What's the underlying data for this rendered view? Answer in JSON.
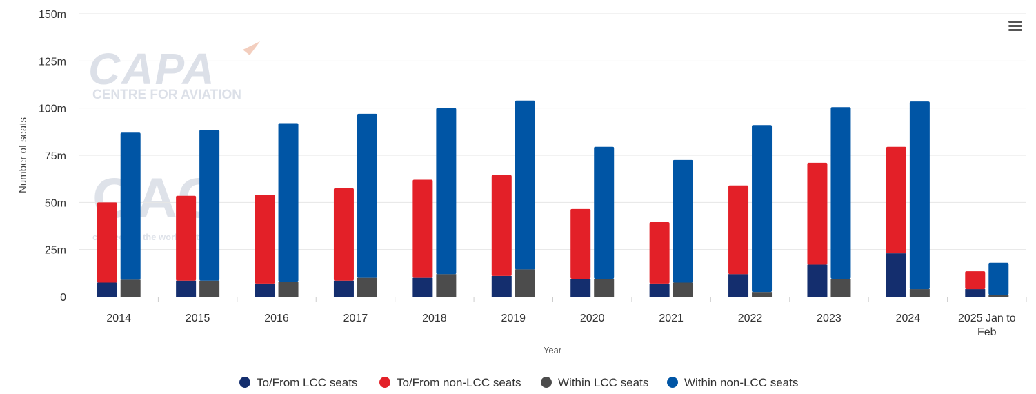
{
  "watermark": {
    "capa_logo": "CAPA",
    "capa_tagline": "CENTRE FOR AVIATION",
    "oag_logo": "OAG",
    "oag_tagline": "connecting the world of travel"
  },
  "menu_icon": "hamburger-menu-icon",
  "chart_data": {
    "type": "bar",
    "xlabel": "Year",
    "ylabel": "Number of seats",
    "ylim": [
      0,
      150
    ],
    "yticks": [
      0,
      25,
      50,
      75,
      100,
      125,
      150
    ],
    "ytick_labels": [
      "0",
      "25m",
      "50m",
      "75m",
      "100m",
      "125m",
      "150m"
    ],
    "grid": true,
    "legend_position": "bottom",
    "categories": [
      "2014",
      "2015",
      "2016",
      "2017",
      "2018",
      "2019",
      "2020",
      "2021",
      "2022",
      "2023",
      "2024",
      "2025 Jan to Feb"
    ],
    "stacks": [
      {
        "stack": "to-from",
        "series": [
          "To/From LCC seats",
          "To/From non-LCC seats"
        ]
      },
      {
        "stack": "within",
        "series": [
          "Within LCC seats",
          "Within non-LCC seats"
        ]
      }
    ],
    "series": [
      {
        "name": "To/From LCC seats",
        "color": "#142e6e",
        "stack": "to-from",
        "values": [
          7.5,
          8.5,
          7,
          8.5,
          10,
          11,
          9.5,
          7,
          12,
          17,
          23,
          4
        ]
      },
      {
        "name": "To/From non-LCC seats",
        "color": "#e32028",
        "stack": "to-from",
        "values": [
          42.5,
          45,
          47,
          49,
          52,
          53.5,
          37,
          32.5,
          47,
          54,
          56.5,
          9.5
        ]
      },
      {
        "name": "Within LCC seats",
        "color": "#4c4c4c",
        "stack": "within",
        "values": [
          9,
          8.5,
          8,
          10,
          12,
          14.5,
          9.5,
          7.5,
          2.5,
          9.5,
          4,
          1
        ]
      },
      {
        "name": "Within non-LCC seats",
        "color": "#0055a5",
        "stack": "within",
        "values": [
          78,
          80,
          84,
          87,
          88,
          89.5,
          70,
          65,
          88.5,
          91,
          99.5,
          17
        ]
      }
    ]
  }
}
